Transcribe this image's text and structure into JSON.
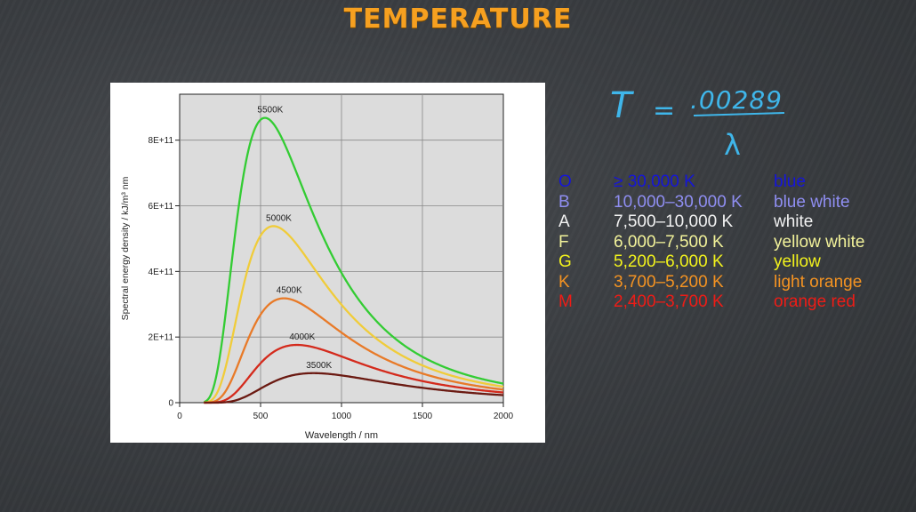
{
  "title": "TEMPERATURE",
  "formula": {
    "lhs": "T",
    "eq": "=",
    "numerator": ".00289",
    "denominator": "λ"
  },
  "star_classes": [
    {
      "cls": "O",
      "range": "≥ 30,000 K",
      "color_name": "blue",
      "color": "#1515d8"
    },
    {
      "cls": "B",
      "range": "10,000–30,000 K",
      "color_name": "blue white",
      "color": "#8f8ef2"
    },
    {
      "cls": "A",
      "range": "7,500–10,000 K",
      "color_name": "white",
      "color": "#f2f2f2"
    },
    {
      "cls": "F",
      "range": "6,000–7,500 K",
      "color_name": "yellow white",
      "color": "#f2f29a"
    },
    {
      "cls": "G",
      "range": "5,200–6,000 K",
      "color_name": "yellow",
      "color": "#f2f21c"
    },
    {
      "cls": "K",
      "range": "3,700–5,200 K",
      "color_name": "light orange",
      "color": "#f49322"
    },
    {
      "cls": "M",
      "range": "2,400–3,700 K",
      "color_name": "orange red",
      "color": "#ee1c16"
    }
  ],
  "chart_data": {
    "type": "line",
    "xlabel": "Wavelength / nm",
    "ylabel": "Spectral energy density / kJ/m³ nm",
    "xlim": [
      0,
      2000
    ],
    "ylim": [
      0,
      940000000000
    ],
    "xticks": [
      0,
      500,
      1000,
      1500,
      2000
    ],
    "xtick_labels": [
      "0",
      "500",
      "1000",
      "1500",
      "2000"
    ],
    "yticks": [
      0,
      200000000000,
      400000000000,
      600000000000,
      800000000000
    ],
    "ytick_labels": [
      "0",
      "2E+11",
      "4E+11",
      "6E+11",
      "8E+11"
    ],
    "grid": true,
    "series": [
      {
        "name": "5500K",
        "temperature": 5500,
        "color": "#33cc33",
        "peak_x": 527,
        "peak_y": 868000000000
      },
      {
        "name": "5000K",
        "temperature": 5000,
        "color": "#f0cc3a",
        "peak_x": 580,
        "peak_y": 538000000000
      },
      {
        "name": "4500K",
        "temperature": 4500,
        "color": "#e87a28",
        "peak_x": 644,
        "peak_y": 318000000000
      },
      {
        "name": "4000K",
        "temperature": 4000,
        "color": "#d42a1c",
        "peak_x": 724,
        "peak_y": 176000000000
      },
      {
        "name": "3500K",
        "temperature": 3500,
        "color": "#6b1a12",
        "peak_x": 828,
        "peak_y": 90000000000
      }
    ]
  }
}
